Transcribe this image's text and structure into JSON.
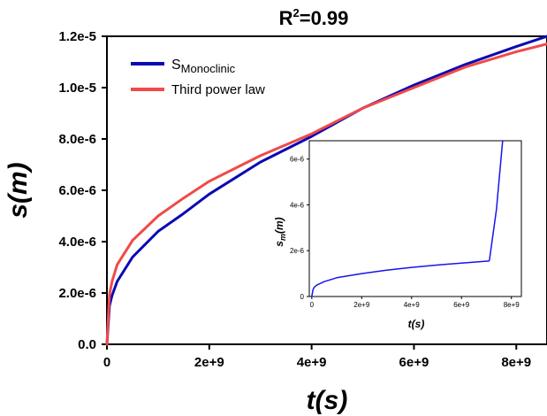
{
  "chart_data": [
    {
      "type": "line",
      "title": "R²=0.99",
      "title_main": "R",
      "title_sup": "2",
      "title_rest": "=0.99",
      "xlabel": "t(s)",
      "ylabel": "s(m)",
      "xlim": [
        0,
        8600000000.0
      ],
      "ylim": [
        0,
        1.2e-05
      ],
      "x_ticks": [
        0,
        2000000000.0,
        4000000000.0,
        6000000000.0,
        8000000000.0
      ],
      "x_tick_labels": [
        "0",
        "2e+9",
        "4e+9",
        "6e+9",
        "8e+9"
      ],
      "y_ticks": [
        0,
        2e-06,
        4e-06,
        6e-06,
        8e-06,
        1e-05,
        1.2e-05
      ],
      "y_tick_labels": [
        "0.0",
        "2.0e-6",
        "4.0e-6",
        "6.0e-6",
        "8.0e-6",
        "1.0e-5",
        "1.2e-5"
      ],
      "legend_position": "top-left",
      "series": [
        {
          "name": "SMonoclinic",
          "name_main": "S",
          "name_sub": "Monoclinic",
          "color": "#0a0ab4",
          "x": [
            0,
            50000000.0,
            100000000.0,
            200000000.0,
            500000000.0,
            1000000000.0,
            1500000000.0,
            2000000000.0,
            3000000000.0,
            4000000000.0,
            5000000000.0,
            6000000000.0,
            7000000000.0,
            8000000000.0,
            8600000000.0
          ],
          "y": [
            0,
            1.5e-06,
            1.9e-06,
            2.45e-06,
            3.4e-06,
            4.4e-06,
            5.1e-06,
            5.85e-06,
            7.1e-06,
            8.1e-06,
            9.2e-06,
            1.01e-05,
            1.09e-05,
            1.16e-05,
            1.2e-05
          ]
        },
        {
          "name": "Third power law",
          "color": "#f04a4a",
          "x": [
            0,
            50000000.0,
            100000000.0,
            200000000.0,
            500000000.0,
            1000000000.0,
            1500000000.0,
            2000000000.0,
            3000000000.0,
            4000000000.0,
            5000000000.0,
            6000000000.0,
            7000000000.0,
            8000000000.0,
            8600000000.0
          ],
          "y": [
            0,
            1.95e-06,
            2.45e-06,
            3.1e-06,
            4.05e-06,
            5e-06,
            5.7e-06,
            6.35e-06,
            7.35e-06,
            8.2e-06,
            9.2e-06,
            1e-05,
            1.08e-05,
            1.14e-05,
            1.17e-05
          ]
        }
      ]
    },
    {
      "type": "line",
      "xlabel": "t(s)",
      "ylabel": "sm(m)",
      "ylabel_main": "s",
      "ylabel_sub": "m",
      "ylabel_rest": "(m)",
      "xlim": [
        -100000000.0,
        8400000000.0
      ],
      "ylim": [
        0,
        6.8e-06
      ],
      "x_ticks": [
        0,
        2000000000.0,
        4000000000.0,
        6000000000.0,
        8000000000.0
      ],
      "x_tick_labels": [
        "0",
        "2e+9",
        "4e+9",
        "6e+9",
        "8e+9"
      ],
      "y_ticks": [
        0,
        2e-06,
        4e-06,
        6e-06
      ],
      "y_tick_labels": [
        "0",
        "2e-6",
        "4e-6",
        "6e-6"
      ],
      "series": [
        {
          "color": "#1515ee",
          "x": [
            0,
            50000000.0,
            100000000.0,
            200000000.0,
            500000000.0,
            1000000000.0,
            2000000000.0,
            3000000000.0,
            4000000000.0,
            5000000000.0,
            6000000000.0,
            7100000000.0,
            7120000000.0,
            7400000000.0,
            7650000000.0
          ],
          "y": [
            0,
            3e-07,
            4e-07,
            5e-07,
            6.5e-07,
            8.2e-07,
            1e-06,
            1.15e-06,
            1.27e-06,
            1.37e-06,
            1.46e-06,
            1.55e-06,
            1.6e-06,
            3.8e-06,
            6.8e-06
          ]
        }
      ]
    }
  ]
}
